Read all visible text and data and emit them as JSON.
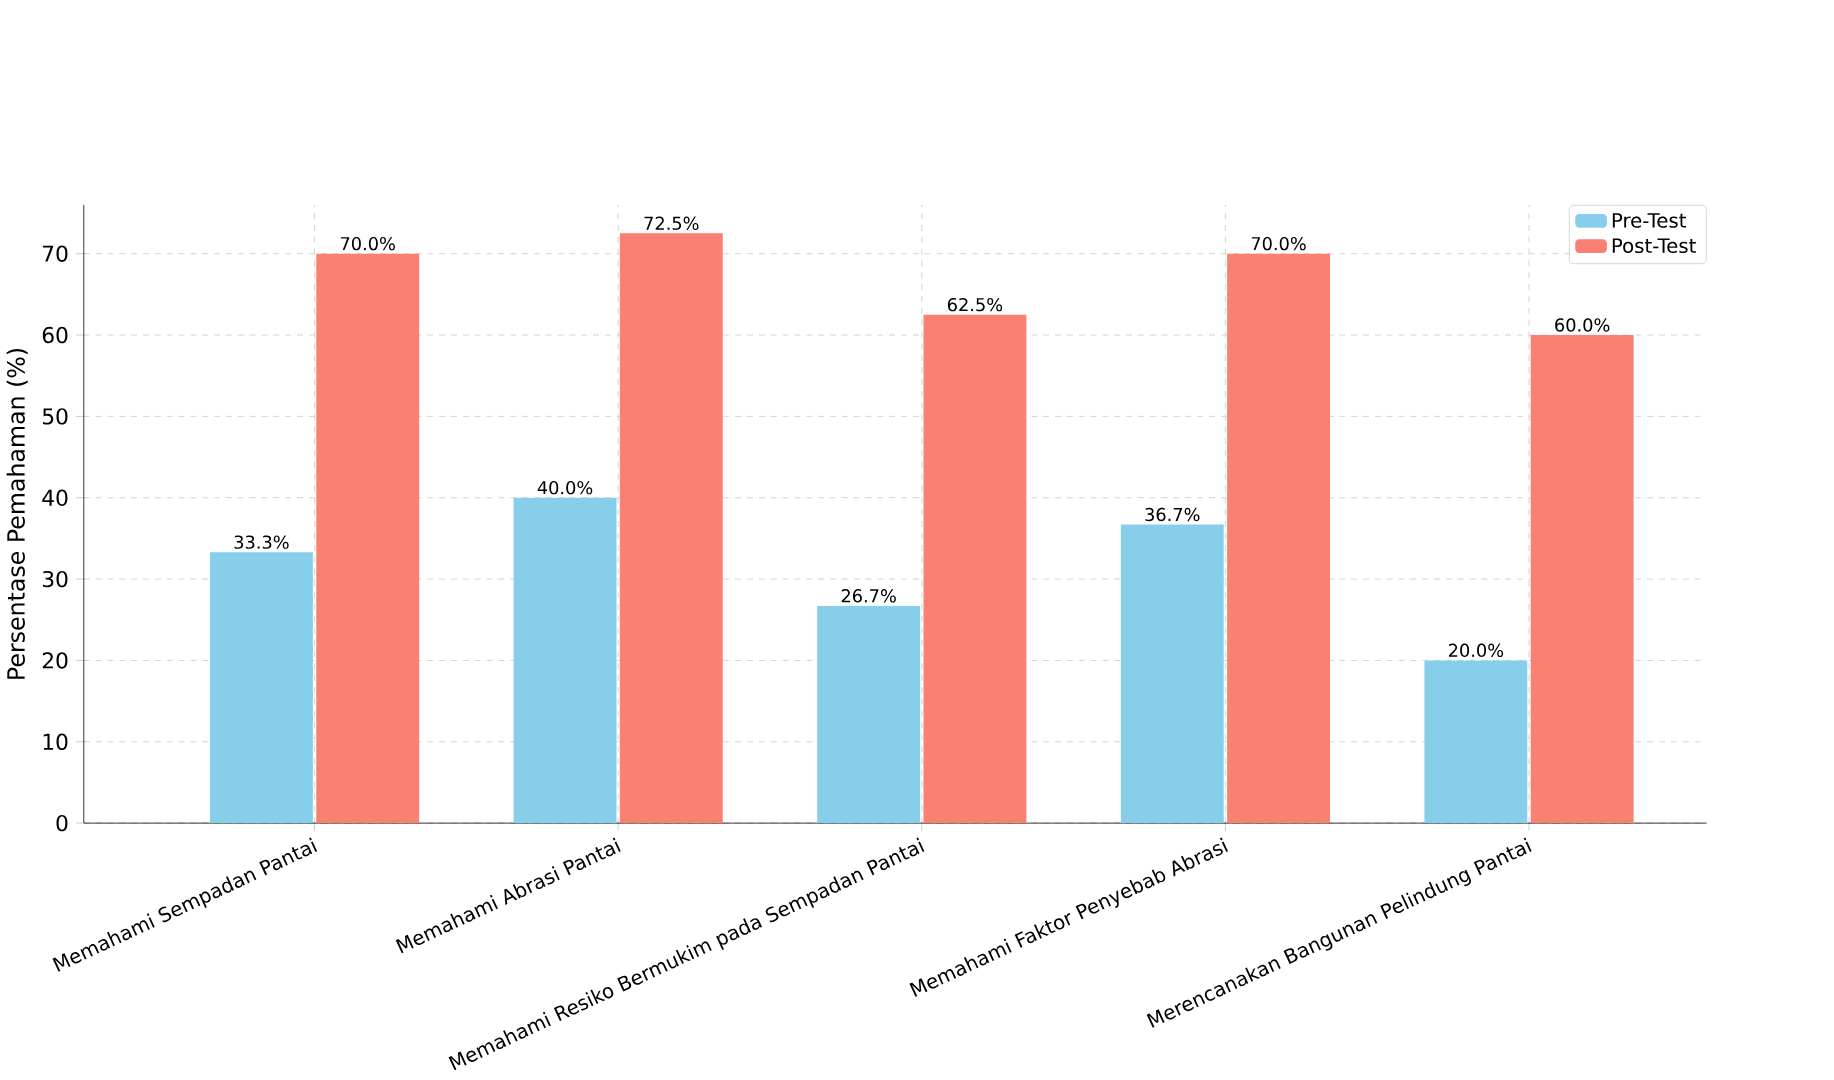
{
  "chart_data": {
    "type": "bar",
    "ylabel": "Persentase Pemahaman (%)",
    "categories": [
      "Memahami Sempadan Pantai",
      "Memahami Abrasi Pantai",
      "Memahami Resiko Bermukim pada Sempadan Pantai",
      "Memahami Faktor Penyebab Abrasi",
      "Merencanakan Bangunan Pelindung Pantai"
    ],
    "series": [
      {
        "name": "Pre-Test",
        "color": "#87ceeb",
        "values": [
          33.3,
          40.0,
          26.7,
          36.7,
          20.0
        ],
        "value_labels": [
          "33.3%",
          "40.0%",
          "26.7%",
          "36.7%",
          "20.0%"
        ]
      },
      {
        "name": "Post-Test",
        "color": "#fa8072",
        "values": [
          70.0,
          72.5,
          62.5,
          70.0,
          60.0
        ],
        "value_labels": [
          "70.0%",
          "72.5%",
          "62.5%",
          "70.0%",
          "60.0%"
        ]
      }
    ],
    "ylim": [
      0,
      76
    ],
    "yticks": [
      0,
      10,
      20,
      30,
      40,
      50,
      60,
      70
    ],
    "grid": true,
    "legend": "top right"
  }
}
